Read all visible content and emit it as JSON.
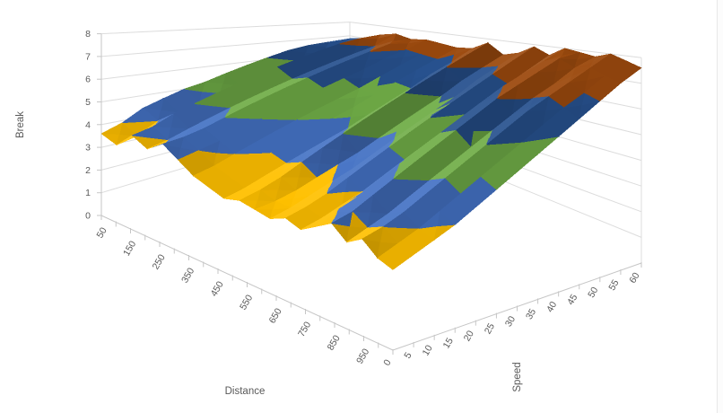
{
  "chart": {
    "value_axis": {
      "title": "Break",
      "min": 0,
      "max": 8,
      "major_unit": 1,
      "labels": [
        "0",
        "1",
        "2",
        "3",
        "4",
        "5",
        "6",
        "7",
        "8"
      ]
    },
    "category_axis": {
      "title": "Distance",
      "labels": [
        "50",
        "150",
        "250",
        "350",
        "450",
        "550",
        "650",
        "750",
        "850",
        "950"
      ]
    },
    "series_axis": {
      "title": "Speed",
      "labels": [
        "0",
        "5",
        "10",
        "15",
        "20",
        "25",
        "30",
        "35",
        "40",
        "45",
        "50",
        "55",
        "60"
      ]
    },
    "band_colors": {
      "2-3": "#A5A5A5",
      "3-4": "#FFC000",
      "4-5": "#4472C4",
      "5-6": "#70AD47",
      "6-7": "#27518E",
      "7-8": "#9C4A0E"
    },
    "gridline_color": "#DCDCDC",
    "axis_color": "#C6C6C6",
    "label_color": "#595959",
    "background": "#FFFFFF"
  },
  "chart_data": {
    "type": "surface",
    "title": "",
    "xlabel": "Distance",
    "x": [
      50,
      100,
      150,
      200,
      250,
      300,
      350,
      400,
      450,
      500,
      550,
      600,
      650,
      700,
      750,
      800,
      850,
      900,
      950,
      1000
    ],
    "series_label": "Speed",
    "series_x": [
      0,
      5,
      10,
      15,
      20,
      25,
      30,
      35,
      40,
      45,
      50,
      55,
      60
    ],
    "zlabel": "Break",
    "zlim": [
      0,
      8
    ],
    "grid": true,
    "legend": "none",
    "values": [
      [
        3.6,
        3.4,
        4.1,
        3.8,
        4.3,
        3.9,
        3.5,
        3.3,
        3.1,
        3.3,
        3.2,
        3.1,
        3.4,
        3.2,
        3.6,
        4.0,
        3.5,
        3.9,
        3.4,
        3.2
      ],
      [
        3.9,
        3.6,
        4.3,
        4.0,
        4.4,
        4.1,
        3.7,
        3.5,
        3.3,
        3.5,
        3.3,
        3.3,
        3.6,
        3.4,
        3.9,
        4.2,
        3.8,
        4.1,
        3.7,
        3.5
      ],
      [
        4.4,
        4.1,
        4.7,
        4.3,
        4.6,
        4.3,
        4.0,
        3.8,
        3.6,
        3.8,
        3.5,
        3.6,
        3.9,
        3.7,
        4.3,
        4.6,
        4.1,
        4.4,
        4.0,
        3.8
      ],
      [
        4.7,
        4.3,
        5.0,
        4.6,
        4.9,
        4.6,
        4.3,
        4.1,
        3.9,
        4.2,
        3.8,
        3.9,
        4.3,
        4.0,
        4.7,
        5.0,
        4.5,
        4.8,
        4.4,
        4.1
      ],
      [
        5.0,
        4.6,
        5.3,
        4.9,
        5.2,
        4.9,
        4.6,
        4.4,
        4.2,
        4.6,
        4.1,
        4.2,
        4.7,
        4.4,
        5.1,
        5.4,
        4.9,
        5.2,
        4.8,
        4.5
      ],
      [
        5.2,
        4.9,
        5.6,
        5.2,
        5.5,
        5.2,
        4.9,
        4.7,
        4.5,
        5.0,
        4.4,
        4.6,
        5.1,
        4.8,
        5.5,
        5.8,
        5.3,
        5.6,
        5.2,
        4.9
      ],
      [
        5.5,
        5.1,
        5.9,
        5.5,
        5.8,
        5.5,
        5.2,
        5.0,
        4.8,
        5.4,
        4.8,
        5.0,
        5.5,
        5.2,
        5.9,
        6.2,
        5.7,
        6.0,
        5.6,
        5.3
      ],
      [
        5.8,
        5.4,
        6.2,
        5.8,
        6.1,
        5.8,
        5.5,
        5.3,
        5.2,
        5.8,
        5.2,
        5.4,
        5.9,
        5.6,
        6.3,
        6.6,
        6.1,
        6.4,
        6.0,
        5.7
      ],
      [
        6.1,
        5.7,
        6.5,
        6.1,
        6.4,
        6.1,
        5.8,
        5.7,
        5.6,
        6.2,
        5.6,
        5.8,
        6.3,
        6.0,
        6.7,
        7.0,
        6.5,
        6.8,
        6.4,
        6.1
      ],
      [
        6.4,
        6.0,
        6.8,
        6.4,
        6.7,
        6.4,
        6.2,
        6.1,
        6.0,
        6.6,
        6.0,
        6.2,
        6.7,
        6.4,
        7.1,
        7.3,
        6.9,
        7.1,
        6.8,
        6.5
      ],
      [
        6.6,
        6.3,
        7.1,
        6.7,
        7.0,
        6.8,
        6.6,
        6.5,
        6.5,
        7.0,
        6.5,
        6.7,
        7.1,
        6.8,
        7.4,
        7.6,
        7.2,
        7.4,
        7.1,
        6.9
      ],
      [
        6.7,
        6.6,
        7.3,
        7.0,
        7.3,
        7.1,
        7.0,
        6.9,
        6.9,
        7.4,
        6.9,
        7.1,
        7.5,
        7.2,
        7.7,
        7.9,
        7.6,
        7.7,
        7.5,
        7.3
      ],
      [
        6.8,
        7.0,
        7.4,
        7.6,
        7.4,
        7.5,
        7.4,
        7.3,
        7.4,
        7.8,
        7.3,
        7.5,
        7.9,
        7.6,
        8.0,
        7.9,
        7.8,
        8.0,
        7.8,
        7.6
      ]
    ]
  }
}
